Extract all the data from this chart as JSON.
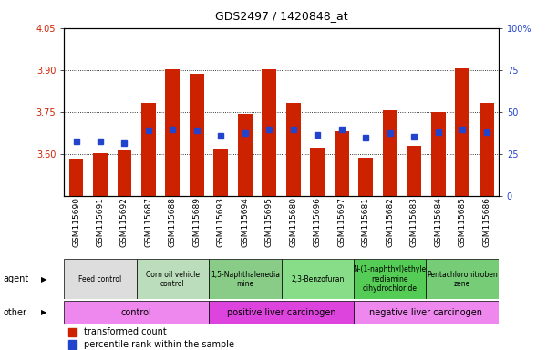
{
  "title": "GDS2497 / 1420848_at",
  "samples": [
    "GSM115690",
    "GSM115691",
    "GSM115692",
    "GSM115687",
    "GSM115688",
    "GSM115689",
    "GSM115693",
    "GSM115694",
    "GSM115695",
    "GSM115680",
    "GSM115696",
    "GSM115697",
    "GSM115681",
    "GSM115682",
    "GSM115683",
    "GSM115684",
    "GSM115685",
    "GSM115686"
  ],
  "bar_values": [
    3.585,
    3.602,
    3.613,
    3.782,
    3.902,
    3.885,
    3.615,
    3.742,
    3.902,
    3.782,
    3.622,
    3.682,
    3.588,
    3.755,
    3.628,
    3.75,
    3.905,
    3.782
  ],
  "percentile_values": [
    3.645,
    3.645,
    3.638,
    3.685,
    3.688,
    3.685,
    3.665,
    3.675,
    3.688,
    3.688,
    3.668,
    3.688,
    3.658,
    3.675,
    3.662,
    3.678,
    3.688,
    3.678
  ],
  "ymin": 3.45,
  "ymax": 4.05,
  "yticks": [
    3.6,
    3.75,
    3.9,
    4.05
  ],
  "y2ticks": [
    0,
    25,
    50,
    75,
    100
  ],
  "bar_color": "#cc2200",
  "percentile_color": "#2244cc",
  "agent_groups": [
    {
      "label": "Feed control",
      "start": 0,
      "end": 3,
      "color": "#dddddd"
    },
    {
      "label": "Corn oil vehicle\ncontrol",
      "start": 3,
      "end": 6,
      "color": "#bbddbb"
    },
    {
      "label": "1,5-Naphthalenedia\nmine",
      "start": 6,
      "end": 9,
      "color": "#88cc88"
    },
    {
      "label": "2,3-Benzofuran",
      "start": 9,
      "end": 12,
      "color": "#88dd88"
    },
    {
      "label": "N-(1-naphthyl)ethyle\nnediamine\ndihydrochloride",
      "start": 12,
      "end": 15,
      "color": "#55cc55"
    },
    {
      "label": "Pentachloronitroben\nzene",
      "start": 15,
      "end": 18,
      "color": "#77cc77"
    }
  ],
  "other_groups": [
    {
      "label": "control",
      "start": 0,
      "end": 6,
      "color": "#ee88ee"
    },
    {
      "label": "positive liver carcinogen",
      "start": 6,
      "end": 12,
      "color": "#dd44dd"
    },
    {
      "label": "negative liver carcinogen",
      "start": 12,
      "end": 18,
      "color": "#ee88ee"
    }
  ],
  "agent_label": "agent",
  "other_label": "other",
  "legend_bar_label": "transformed count",
  "legend_pct_label": "percentile rank within the sample",
  "axis_color_left": "#cc2200",
  "axis_color_right": "#2244cc"
}
